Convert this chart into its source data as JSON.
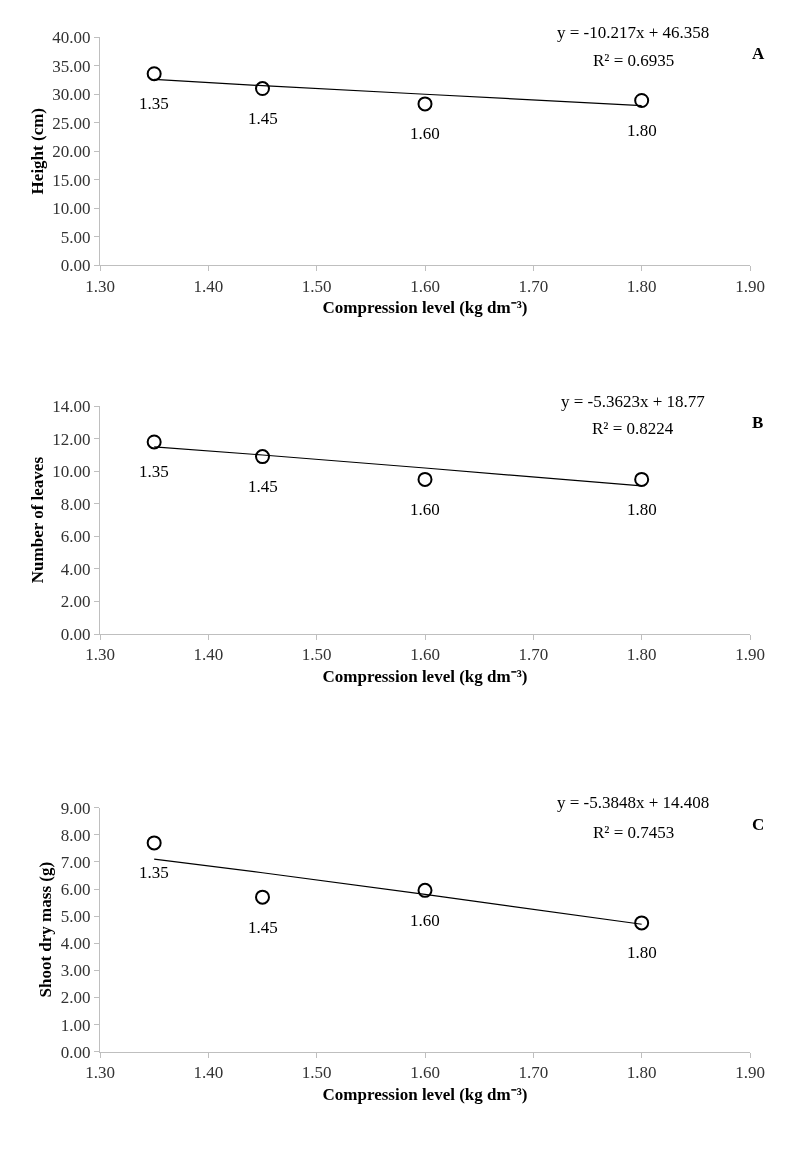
{
  "chart_data": [
    {
      "type": "scatter",
      "xlabel": "Compression level (kg dm⁻³)",
      "ylabel": "Height (cm)",
      "xlim": [
        1.3,
        1.9
      ],
      "xticks": [
        {
          "value": 1.3,
          "label": "1.30"
        },
        {
          "value": 1.4,
          "label": "1.40"
        },
        {
          "value": 1.5,
          "label": "1.50"
        },
        {
          "value": 1.6,
          "label": "1.60"
        },
        {
          "value": 1.7,
          "label": "1.70"
        },
        {
          "value": 1.8,
          "label": "1.80"
        },
        {
          "value": 1.9,
          "label": "1.90"
        }
      ],
      "ylim": [
        0,
        40
      ],
      "yticks": [
        {
          "value": 0,
          "label": "0.00"
        },
        {
          "value": 5,
          "label": "5.00"
        },
        {
          "value": 10,
          "label": "10.00"
        },
        {
          "value": 15,
          "label": "15.00"
        },
        {
          "value": 20,
          "label": "20.00"
        },
        {
          "value": 25,
          "label": "25.00"
        },
        {
          "value": 30,
          "label": "30.00"
        },
        {
          "value": 35,
          "label": "35.00"
        },
        {
          "value": 40,
          "label": "40.00"
        }
      ],
      "x": [
        1.35,
        1.45,
        1.6,
        1.8
      ],
      "series": [
        {
          "color": "#000000",
          "marker": "circle",
          "values": [
            33.6,
            31.0,
            28.3,
            28.9
          ]
        },
        {
          "type": "line",
          "color": "#000000",
          "marker": "none",
          "values": [
            32.6,
            31.5,
            30.0,
            28.0
          ]
        }
      ],
      "annotations": [
        "y = -10.217x + 46.358",
        "R² = 0.6935",
        "A",
        {
          "text": "1.35",
          "x": 1.35,
          "y": 33.6
        },
        {
          "text": "1.45",
          "x": 1.45,
          "y": 31.0
        },
        {
          "text": "1.60",
          "x": 1.6,
          "y": 28.3
        },
        {
          "text": "1.80",
          "x": 1.8,
          "y": 28.9
        }
      ]
    },
    {
      "type": "scatter",
      "xlabel": "Compression level (kg dm⁻³)",
      "ylabel": "Number of leaves",
      "xlim": [
        1.3,
        1.9
      ],
      "xticks": [
        {
          "value": 1.3,
          "label": "1.30"
        },
        {
          "value": 1.4,
          "label": "1.40"
        },
        {
          "value": 1.5,
          "label": "1.50"
        },
        {
          "value": 1.6,
          "label": "1.60"
        },
        {
          "value": 1.7,
          "label": "1.70"
        },
        {
          "value": 1.8,
          "label": "1.80"
        },
        {
          "value": 1.9,
          "label": "1.90"
        }
      ],
      "ylim": [
        0,
        14
      ],
      "yticks": [
        {
          "value": 0,
          "label": "0.00"
        },
        {
          "value": 2,
          "label": "2.00"
        },
        {
          "value": 4,
          "label": "4.00"
        },
        {
          "value": 6,
          "label": "6.00"
        },
        {
          "value": 8,
          "label": "8.00"
        },
        {
          "value": 10,
          "label": "10.00"
        },
        {
          "value": 12,
          "label": "12.00"
        },
        {
          "value": 14,
          "label": "14.00"
        }
      ],
      "x": [
        1.35,
        1.45,
        1.6,
        1.8
      ],
      "series": [
        {
          "color": "#000000",
          "marker": "circle",
          "values": [
            11.8,
            10.9,
            9.5,
            9.5
          ]
        },
        {
          "type": "line",
          "color": "#000000",
          "marker": "none",
          "values": [
            11.5,
            11.0,
            10.2,
            9.1
          ]
        }
      ],
      "annotations": [
        "y = -5.3623x + 18.77",
        "R² = 0.8224",
        "B",
        {
          "text": "1.35",
          "x": 1.35,
          "y": 11.8
        },
        {
          "text": "1.45",
          "x": 1.45,
          "y": 10.9
        },
        {
          "text": "1.60",
          "x": 1.6,
          "y": 9.5
        },
        {
          "text": "1.80",
          "x": 1.8,
          "y": 9.5
        }
      ]
    },
    {
      "type": "scatter",
      "xlabel": "Compression level (kg dm⁻³)",
      "ylabel": "Shoot dry mass (g)",
      "xlim": [
        1.3,
        1.9
      ],
      "xticks": [
        {
          "value": 1.3,
          "label": "1.30"
        },
        {
          "value": 1.4,
          "label": "1.40"
        },
        {
          "value": 1.5,
          "label": "1.50"
        },
        {
          "value": 1.6,
          "label": "1.60"
        },
        {
          "value": 1.7,
          "label": "1.70"
        },
        {
          "value": 1.8,
          "label": "1.80"
        },
        {
          "value": 1.9,
          "label": "1.90"
        }
      ],
      "ylim": [
        0,
        9
      ],
      "yticks": [
        {
          "value": 0,
          "label": "0.00"
        },
        {
          "value": 1,
          "label": "1.00"
        },
        {
          "value": 2,
          "label": "2.00"
        },
        {
          "value": 3,
          "label": "3.00"
        },
        {
          "value": 4,
          "label": "4.00"
        },
        {
          "value": 5,
          "label": "5.00"
        },
        {
          "value": 6,
          "label": "6.00"
        },
        {
          "value": 7,
          "label": "7.00"
        },
        {
          "value": 8,
          "label": "8.00"
        },
        {
          "value": 9,
          "label": "9.00"
        }
      ],
      "x": [
        1.35,
        1.45,
        1.6,
        1.8
      ],
      "series": [
        {
          "color": "#000000",
          "marker": "circle",
          "values": [
            7.7,
            5.7,
            5.95,
            4.75
          ]
        },
        {
          "type": "line",
          "color": "#000000",
          "marker": "none",
          "values": [
            7.1,
            6.6,
            5.8,
            4.7
          ]
        }
      ],
      "annotations": [
        "y = -5.3848x + 14.408",
        "R² = 0.7453",
        "C",
        {
          "text": "1.35",
          "x": 1.35,
          "y": 7.7
        },
        {
          "text": "1.45",
          "x": 1.45,
          "y": 5.7
        },
        {
          "text": "1.60",
          "x": 1.6,
          "y": 5.95
        },
        {
          "text": "1.80",
          "x": 1.8,
          "y": 4.75
        }
      ]
    }
  ]
}
